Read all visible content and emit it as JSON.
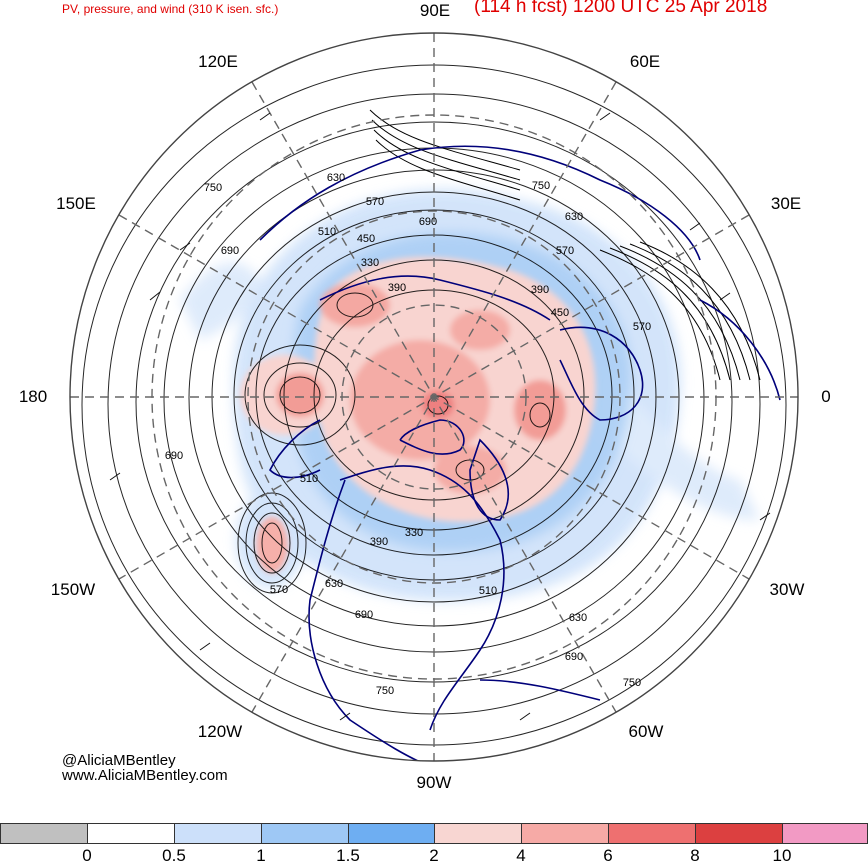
{
  "title": {
    "left": "PV, pressure, and wind (310 K isen. sfc.)",
    "right": "(114 h fcst) 1200 UTC 25 Apr 2018"
  },
  "longitude_labels": [
    "90E",
    "60E",
    "30E",
    "0",
    "30W",
    "60W",
    "90W",
    "120W",
    "150W",
    "180",
    "150E",
    "120E"
  ],
  "contour_labels": [
    "630",
    "570",
    "750",
    "690",
    "510",
    "450",
    "330",
    "390",
    "630",
    "750",
    "570",
    "390",
    "450",
    "570",
    "690",
    "510",
    "570",
    "630",
    "690",
    "390",
    "330",
    "690",
    "750",
    "510",
    "630",
    "690",
    "750"
  ],
  "credits": {
    "twitter": "@AliciaMBentley",
    "website": "www.AliciaMBentley.com"
  },
  "colorbar": {
    "tick_labels": [
      "0",
      "0.5",
      "1",
      "1.5",
      "2",
      "4",
      "6",
      "8",
      "10"
    ],
    "colors": [
      "#c0c0c0",
      "#ffffff",
      "#cce0fa",
      "#9ec8f5",
      "#6eaef2",
      "#f8d6d2",
      "#f6aaa6",
      "#ee7070",
      "#dc4040",
      "#f29ac4"
    ]
  },
  "map": {
    "projection": "north polar stereographic",
    "land_outline_color": "#00007a",
    "contour_color": "#000000",
    "graticule_color": "#666666"
  }
}
